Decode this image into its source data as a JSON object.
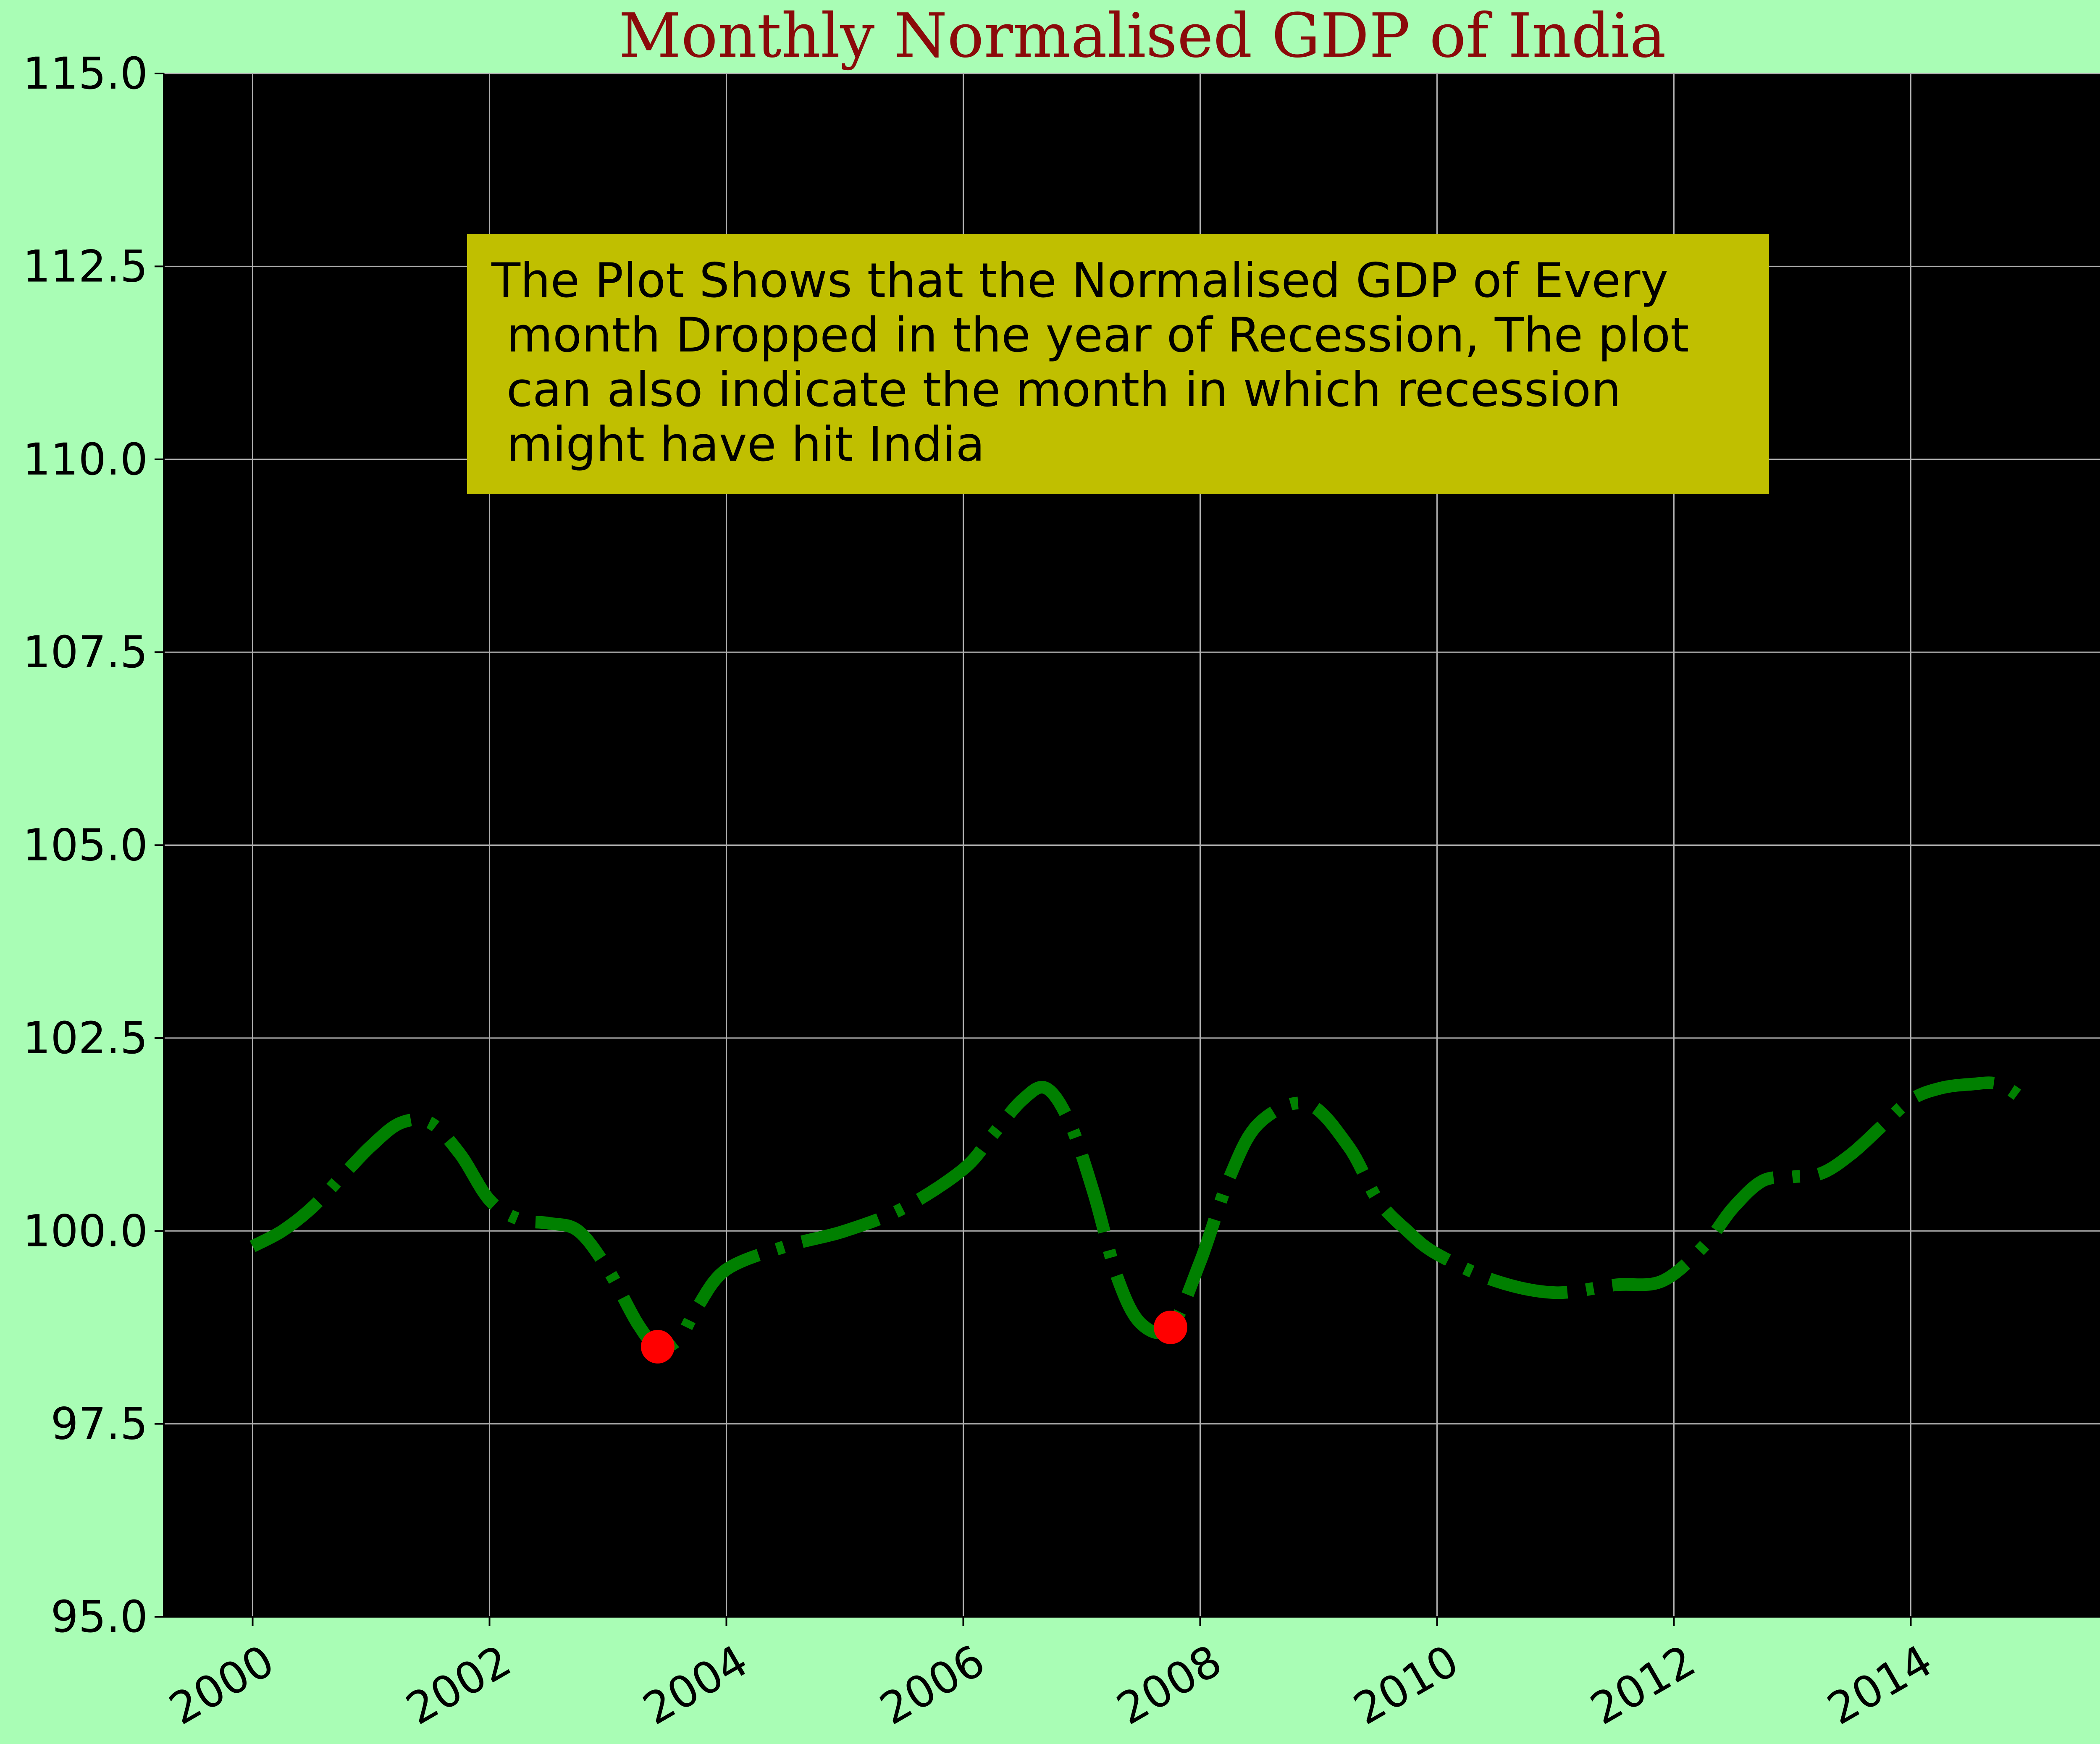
{
  "colors": {
    "figure_background": "#a9fdb5",
    "plot_background": "#000000",
    "grid": "#b0b0b0",
    "line": "#008000",
    "highlight": "#ff0000",
    "title": "#8b0a0a",
    "annotation_box": "#c0bf00"
  },
  "chart_data": {
    "type": "line",
    "title": "Monthly Normalised GDP of India",
    "xlabel": "",
    "ylabel": "",
    "xlim": [
      1999.25,
      2015.75
    ],
    "ylim": [
      95.0,
      115.0
    ],
    "x_ticks": [
      2000,
      2002,
      2004,
      2006,
      2008,
      2010,
      2012,
      2014
    ],
    "x_tick_labels": [
      "2000",
      "2002",
      "2004",
      "2006",
      "2008",
      "2010",
      "2012",
      "2014"
    ],
    "y_ticks": [
      95.0,
      97.5,
      100.0,
      102.5,
      105.0,
      107.5,
      110.0,
      112.5,
      115.0
    ],
    "y_tick_labels": [
      "95.0",
      "97.5",
      "100.0",
      "102.5",
      "105.0",
      "107.5",
      "110.0",
      "112.5",
      "115.0"
    ],
    "grid": true,
    "line_style": "dash-dot",
    "series": [
      {
        "x": [
          2000.0,
          2000.25,
          2000.5,
          2000.75,
          2001.0,
          2001.25,
          2001.5,
          2001.75,
          2002.0,
          2002.25,
          2002.5,
          2002.75,
          2003.0,
          2003.25,
          2003.42,
          2003.6,
          2003.75,
          2004.0,
          2004.5,
          2005.0,
          2005.5,
          2006.0,
          2006.25,
          2006.5,
          2006.7,
          2006.9,
          2007.1,
          2007.3,
          2007.5,
          2007.75,
          2008.0,
          2008.25,
          2008.5,
          2008.9,
          2009.25,
          2009.5,
          2009.75,
          2010.0,
          2010.5,
          2011.0,
          2011.5,
          2011.9,
          2012.25,
          2012.5,
          2012.75,
          2013.0,
          2013.25,
          2013.5,
          2013.75,
          2014.0,
          2014.25,
          2014.5,
          2014.75,
          2015.0
        ],
        "y": [
          99.8,
          100.0,
          100.3,
          100.7,
          101.1,
          101.4,
          101.4,
          101.0,
          100.4,
          100.15,
          100.1,
          100.0,
          99.5,
          98.8,
          98.5,
          98.6,
          99.0,
          99.5,
          99.8,
          100.0,
          100.3,
          100.8,
          101.25,
          101.7,
          101.85,
          101.4,
          100.5,
          99.4,
          98.8,
          98.75,
          99.6,
          100.7,
          101.4,
          101.65,
          101.1,
          100.4,
          100.0,
          99.7,
          99.35,
          99.2,
          99.3,
          99.35,
          99.8,
          100.3,
          100.65,
          100.7,
          100.75,
          101.0,
          101.35,
          101.7,
          101.85,
          101.9,
          101.9,
          101.65
        ]
      }
    ],
    "highlights": [
      {
        "x": 2003.42,
        "y": 98.5
      },
      {
        "x": 2007.75,
        "y": 98.75
      }
    ],
    "annotation": "The Plot Shows that the Normalised GDP of Every\n month Dropped in the year of Recession, The plot\n can also indicate the month in which recession\n might have hit India"
  }
}
